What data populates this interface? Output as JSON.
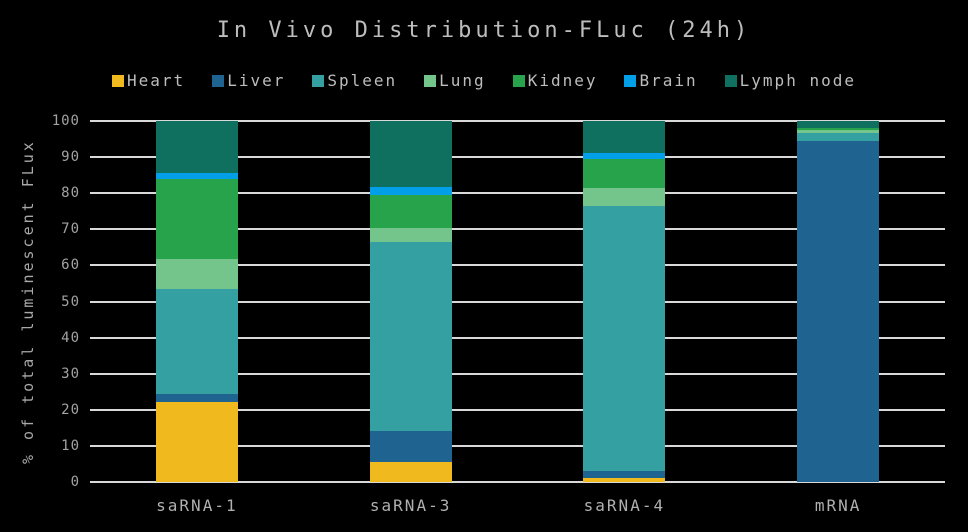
{
  "title": "In Vivo Distribution-FLuc (24h)",
  "colors": {
    "background": "#000000",
    "title_text": "#bdbdbd",
    "tick_text": "#a3a3a3",
    "gridline": "#d9d9d9"
  },
  "chart_data": {
    "type": "bar",
    "stacked": true,
    "title": "In Vivo Distribution-FLuc (24h)",
    "categories": [
      "saRNA-1",
      "saRNA-3",
      "saRNA-4",
      "mRNA"
    ],
    "series": [
      {
        "name": "Heart",
        "color": "#f0b91d",
        "values": [
          22.1,
          5.6,
          1.1,
          0
        ]
      },
      {
        "name": "Liver",
        "color": "#1f6391",
        "values": [
          2.3,
          8.6,
          1.9,
          94.4
        ]
      },
      {
        "name": "Spleen",
        "color": "#35a0a1",
        "values": [
          29.2,
          52.2,
          73.6,
          2.2
        ]
      },
      {
        "name": "Lung",
        "color": "#74c58c",
        "values": [
          8.1,
          3.9,
          4.9,
          0.8
        ]
      },
      {
        "name": "Kidney",
        "color": "#27a34c",
        "values": [
          22.2,
          9.1,
          8.0,
          0.6
        ]
      },
      {
        "name": "Brain",
        "color": "#009fe8",
        "values": [
          1.7,
          2.3,
          1.7,
          0
        ]
      },
      {
        "name": "Lymph node",
        "color": "#0f705f",
        "values": [
          14.4,
          18.3,
          8.8,
          2.0
        ]
      }
    ],
    "xlabel": "",
    "ylabel": "% of total luminescent FLux",
    "ylim": [
      0,
      100
    ],
    "yticks": [
      0,
      10,
      20,
      30,
      40,
      50,
      60,
      70,
      80,
      90,
      100
    ],
    "grid": true,
    "legend_position": "top"
  }
}
